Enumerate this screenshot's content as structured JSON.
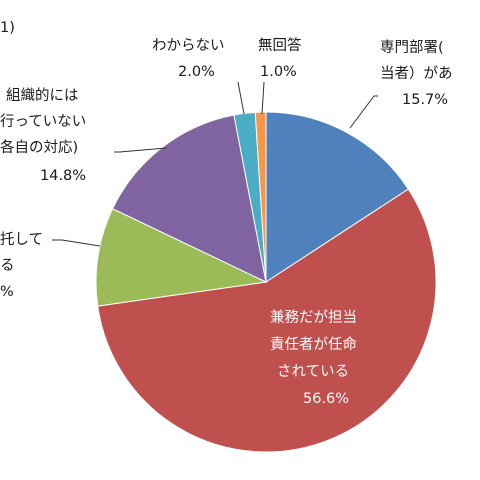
{
  "header": {
    "fragment": "1)"
  },
  "chart_data": {
    "type": "pie",
    "title": "",
    "start_angle_deg": 0,
    "direction": "clockwise",
    "slices": [
      {
        "lines": [
          "専門部署(",
          "当者）があ"
        ],
        "value_label": "15.7%",
        "value": 15.7,
        "color": "#4f81bd"
      },
      {
        "lines": [
          "兼務だが担当",
          "責任者が任命",
          "されている"
        ],
        "value_label": "56.6%",
        "value": 56.6,
        "color": "#c0504d"
      },
      {
        "lines": [
          "托して",
          "る"
        ],
        "value_label": "%",
        "value": 9.3,
        "color": "#9bbb59"
      },
      {
        "lines": [
          "組織的には",
          "行っていない",
          "各自の対応)"
        ],
        "value_label": "14.8%",
        "value": 14.8,
        "color": "#8064a2"
      },
      {
        "lines": [
          "わからない"
        ],
        "value_label": "2.0%",
        "value": 2.0,
        "color": "#4bacc6"
      },
      {
        "lines": [
          "無回答"
        ],
        "value_label": "1.0%",
        "value": 1.0,
        "color": "#f79646"
      }
    ]
  }
}
